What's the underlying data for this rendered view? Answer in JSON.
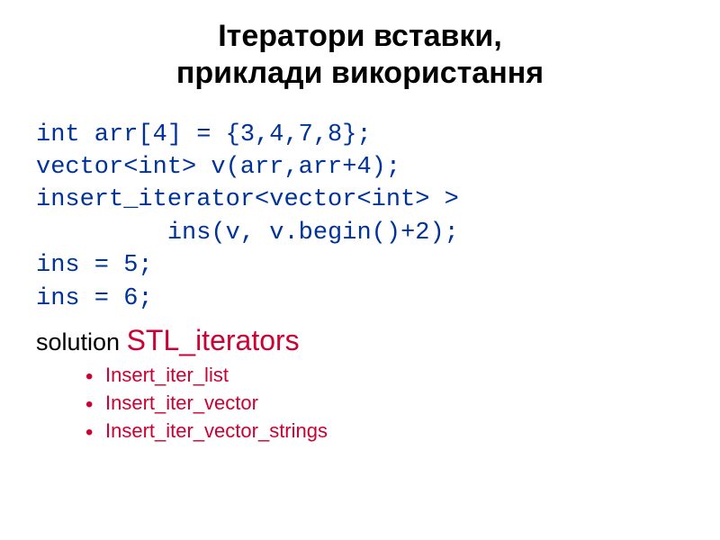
{
  "title": {
    "line1": "Ітератори вставки,",
    "line2": "приклади використання"
  },
  "code": {
    "lines": [
      "int arr[4] = {3,4,7,8};",
      "vector<int> v(arr,arr+4);",
      "insert_iterator<vector<int> >",
      "         ins(v, v.begin()+2);",
      "ins = 5;",
      "ins = 6;"
    ],
    "color": "#003399",
    "font": "Courier New"
  },
  "solution": {
    "label": "solution ",
    "highlight": "STL_iterators",
    "highlight_color": "#cc0033"
  },
  "bullets": {
    "items": [
      "Insert_iter_list",
      "Insert_iter_vector",
      "Insert_iter_vector_strings"
    ],
    "color": "#cc0033"
  }
}
